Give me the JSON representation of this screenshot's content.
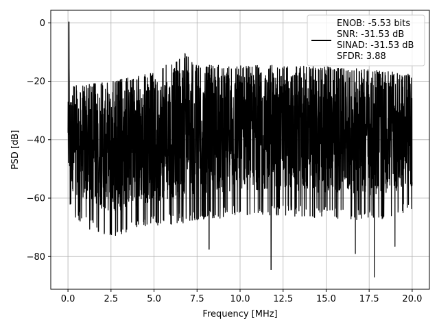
{
  "chart_data": {
    "type": "line",
    "title": "",
    "xlabel": "Frequency [MHz]",
    "ylabel": "PSD [dB]",
    "xlim": [
      -1.0,
      21.0
    ],
    "ylim": [
      -91.2,
      4.3
    ],
    "xticks": [
      0.0,
      2.5,
      5.0,
      7.5,
      10.0,
      12.5,
      15.0,
      17.5,
      20.0
    ],
    "xtick_labels": [
      "0.0",
      "2.5",
      "5.0",
      "7.5",
      "10.0",
      "12.5",
      "15.0",
      "17.5",
      "20.0"
    ],
    "yticks": [
      0,
      -20,
      -40,
      -60,
      -80
    ],
    "ytick_labels": [
      "0",
      "−20",
      "−40",
      "−60",
      "−80"
    ],
    "grid": true,
    "legend_position": "top-right",
    "series": [
      {
        "name": "",
        "color": "#000000",
        "description_points": {
          "x": [
            0.0,
            0.05,
            0.1,
            0.3,
            1.0,
            2.5,
            5.0,
            6.8,
            7.5,
            10.0,
            12.5,
            15.0,
            17.5,
            20.0
          ],
          "upper_envelope": [
            -18,
            0.3,
            -21,
            -21,
            -21,
            -20,
            -17,
            -10.5,
            -14.5,
            -14.5,
            -14.5,
            -15,
            -16,
            -17.5
          ],
          "lower_envelope": [
            -49,
            -60,
            -60,
            -62,
            -66,
            -70,
            -66,
            -65,
            -64,
            -62,
            -62,
            -63,
            -64,
            -61
          ]
        },
        "notable_dips": [
          {
            "x": 8.2,
            "y": -77.5
          },
          {
            "x": 11.8,
            "y": -84.5
          },
          {
            "x": 16.7,
            "y": -79
          },
          {
            "x": 17.8,
            "y": -87
          },
          {
            "x": 19.0,
            "y": -76.5
          }
        ]
      }
    ],
    "legend": {
      "lines": [
        "ENOB: -5.53 bits",
        "SNR: -31.53 dB",
        "SINAD: -31.53 dB",
        "SFDR: 3.88"
      ],
      "line_color": "#000000"
    }
  }
}
